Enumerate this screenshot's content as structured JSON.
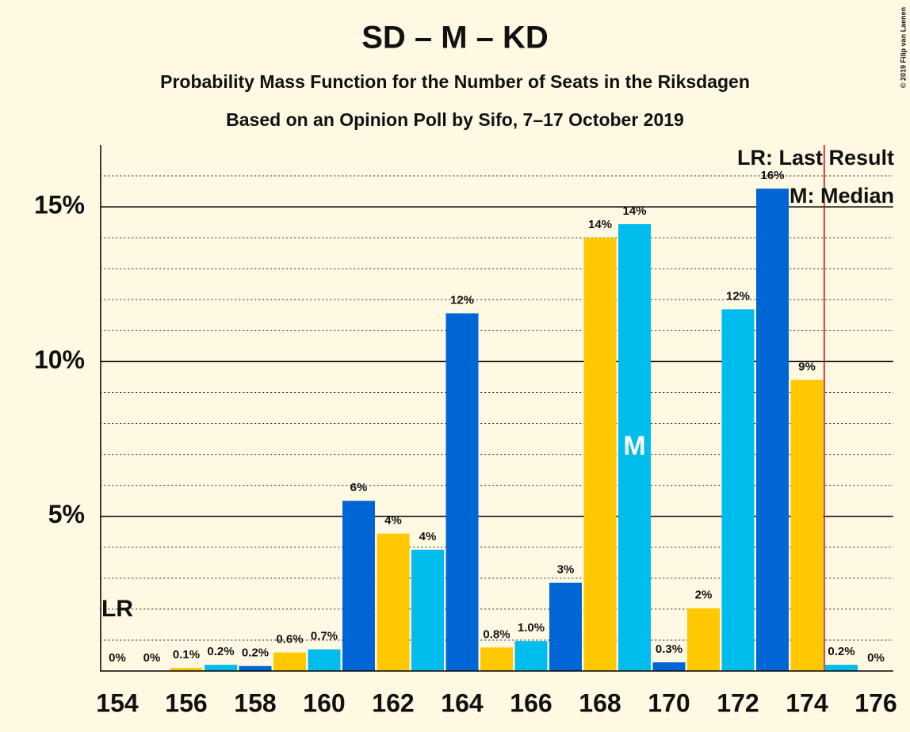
{
  "chart_data": {
    "type": "bar",
    "title": "SD – M – KD",
    "subtitle": "Probability Mass Function for the Number of Seats in the Riksdagen",
    "subtitle2": "Based on an Opinion Poll by Sifo, 7–17 October 2019",
    "copyright": "© 2019 Filip van Laenen",
    "categories": [
      154,
      null,
      156,
      null,
      158,
      null,
      160,
      null,
      162,
      null,
      164,
      null,
      166,
      null,
      168,
      null,
      170,
      null,
      172,
      null,
      174,
      null,
      176
    ],
    "values": [
      0,
      0,
      0.1,
      0.2,
      0.16,
      0.6,
      0.7,
      5.5,
      4.44,
      3.92,
      11.56,
      0.76,
      0.97,
      2.85,
      14.0,
      14.44,
      0.28,
      2.03,
      11.69,
      15.59,
      9.41,
      0.2,
      0
    ],
    "value_labels": [
      "0%",
      "0%",
      "0.1%",
      "0.2%",
      "0.2%",
      "0.6%",
      "0.7%",
      "6%",
      "4%",
      "4%",
      "12%",
      "0.8%",
      "1.0%",
      "3%",
      "14%",
      "14%",
      "0.3%",
      "2%",
      "12%",
      "16%",
      "9%",
      "0.2%",
      "0%"
    ],
    "colors": [
      "#0066d6",
      "#0066d6",
      "#ffc800",
      "#00bdee",
      "#0066d6",
      "#ffc800",
      "#00bdee",
      "#0066d6",
      "#ffc800",
      "#00bdee",
      "#0066d6",
      "#ffc800",
      "#00bdee",
      "#0066d6",
      "#ffc800",
      "#00bdee",
      "#0066d6",
      "#ffc800",
      "#00bdee",
      "#0066d6",
      "#ffc800",
      "#00bdee",
      "#0066d6"
    ],
    "ylim": [
      0,
      17
    ],
    "yticks": [
      {
        "value": 5,
        "label": "5%"
      },
      {
        "value": 10,
        "label": "10%"
      },
      {
        "value": 15,
        "label": "15%"
      }
    ],
    "minor_yticks": [
      1,
      2,
      3,
      4,
      6,
      7,
      8,
      9,
      11,
      12,
      13,
      14,
      16
    ],
    "median_index": 15,
    "median_label": "M",
    "last_result_index": 0,
    "last_result_label": "LR",
    "majority_index": 21,
    "majority_color": "#cc0000",
    "legend": [
      "LR: Last Result",
      "M: Median"
    ]
  }
}
